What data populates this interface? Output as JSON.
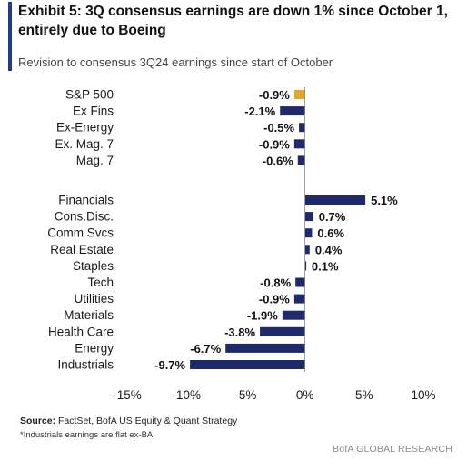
{
  "header": {
    "title": "Exhibit 5: 3Q consensus earnings are down 1% since October 1, entirely due to Boeing",
    "subtitle": "Revision to consensus 3Q24 earnings since start of October"
  },
  "footer": {
    "source_label": "Source:",
    "source_text": "FactSet, BofA US Equity & Quant Strategy",
    "footnote": "*Industrials earnings are flat ex-BA",
    "brand": "BofA GLOBAL RESEARCH"
  },
  "colors": {
    "bar": "#1f2a6b",
    "highlight": "#e3a82b",
    "accent": "#1f3a93"
  },
  "chart_data": {
    "type": "bar",
    "orientation": "horizontal",
    "title": "Revision to consensus 3Q24 earnings since start of October",
    "xlim": [
      -15,
      10
    ],
    "xticks": [
      "-15%",
      "-10%",
      "-5%",
      "0%",
      "5%",
      "10%"
    ],
    "xtick_values": [
      -15,
      -10,
      -5,
      0,
      5,
      10
    ],
    "groups": [
      {
        "categories": [
          "S&P 500",
          "Ex Fins",
          "Ex-Energy",
          "Ex. Mag. 7",
          "Mag. 7"
        ],
        "values": [
          -0.9,
          -2.1,
          -0.5,
          -0.9,
          -0.6
        ],
        "labels": [
          "-0.9%",
          "-2.1%",
          "-0.5%",
          "-0.9%",
          "-0.6%"
        ],
        "highlight_index": 0
      },
      {
        "categories": [
          "Financials",
          "Cons.Disc.",
          "Comm Svcs",
          "Real Estate",
          "Staples",
          "Tech",
          "Utilities",
          "Materials",
          "Health Care",
          "Energy",
          "Industrials"
        ],
        "values": [
          5.1,
          0.7,
          0.6,
          0.4,
          0.1,
          -0.8,
          -0.9,
          -1.9,
          -3.8,
          -6.7,
          -9.7
        ],
        "labels": [
          "5.1%",
          "0.7%",
          "0.6%",
          "0.4%",
          "0.1%",
          "-0.8%",
          "-0.9%",
          "-1.9%",
          "-3.8%",
          "-6.7%",
          "-9.7%"
        ]
      }
    ]
  }
}
